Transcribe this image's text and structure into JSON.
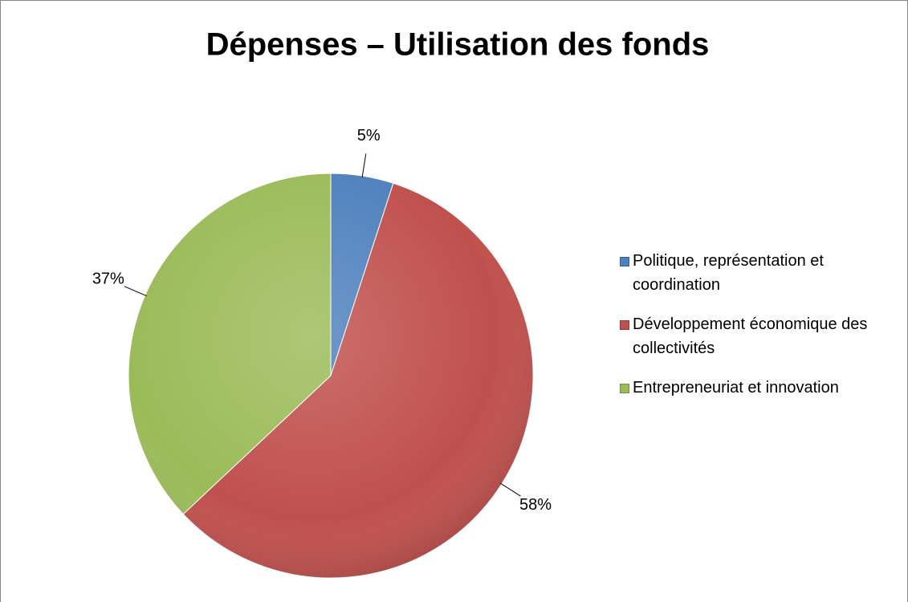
{
  "chart_data": {
    "type": "pie",
    "title": "Dépenses – Utilisation des fonds",
    "categories": [
      "Politique, représentation et coordination",
      "Développement économique des collectivités",
      "Entrepreneuriat et innovation"
    ],
    "values": [
      5,
      58,
      37
    ],
    "value_labels": [
      "5%",
      "58%",
      "37%"
    ],
    "colors": [
      "#4f81bd",
      "#c0504d",
      "#9bbb59"
    ],
    "legend": "right"
  }
}
